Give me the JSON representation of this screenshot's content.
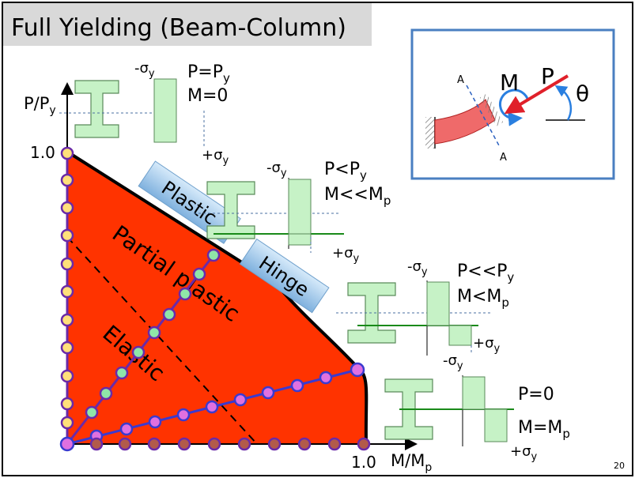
{
  "slide": {
    "title": "Full Yielding (Beam-Column)",
    "page_number": "20"
  },
  "axes": {
    "y_label": "P/P",
    "y_label_sub": "y",
    "x_label": "M/M",
    "x_label_sub": "p",
    "y_tick": "1.0",
    "x_tick": "1.0"
  },
  "regions": {
    "hinge_word1": "Plastic",
    "hinge_word2": "Hinge",
    "partial_label": "Partial plastic",
    "elastic_label": "Elastic"
  },
  "stress_diagrams": [
    {
      "comp": "-σ",
      "comp_sub": "y",
      "tens": "+σ",
      "tens_sub": "y",
      "line1": "P=P",
      "line1_sub": "y",
      "line2": "M=0",
      "line2_sub": ""
    },
    {
      "comp": "-σ",
      "comp_sub": "y",
      "tens": "+σ",
      "tens_sub": "y",
      "line1": "P<P",
      "line1_sub": "y",
      "line2": "M<<M",
      "line2_sub": "p"
    },
    {
      "comp": "-σ",
      "comp_sub": "y",
      "tens": "+σ",
      "tens_sub": "y",
      "line1": "P<<P",
      "line1_sub": "y",
      "line2": "M<M",
      "line2_sub": "p"
    },
    {
      "comp": "-σ",
      "comp_sub": "y",
      "tens": "+σ",
      "tens_sub": "y",
      "line1": "P=0",
      "line1_sub": "",
      "line2": "M=M",
      "line2_sub": "p"
    }
  ],
  "inset": {
    "moment_label": "M",
    "force_label": "P",
    "angle_label": "θ",
    "section_top": "A",
    "section_bottom": "A"
  },
  "colors": {
    "region_fill": "#ff3300",
    "boundary_purple": "#6a2aa8",
    "marker_yellow": "#ffe07a",
    "marker_green": "#8fe6a8",
    "marker_pink": "#e070e0",
    "marker_brown": "#b25a4a",
    "stress_green": "#c6f2c6",
    "hinge_blue": "#9ec8ea",
    "inset_border": "#4a7fc1"
  }
}
